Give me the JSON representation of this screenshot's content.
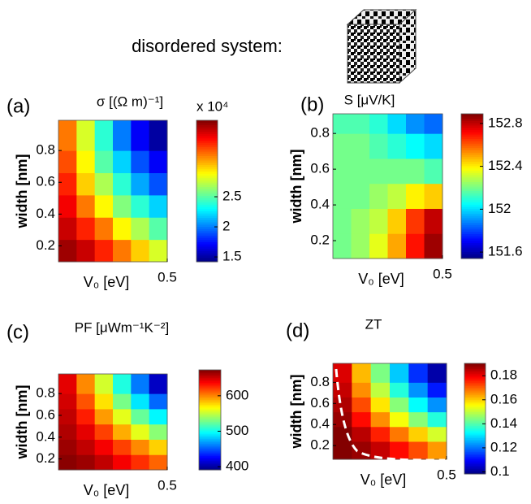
{
  "header": {
    "text": "disordered system:"
  },
  "chart_data": [
    {
      "type": "heatmap",
      "panel_label": "(a)",
      "title": "σ [(Ω m)⁻¹]",
      "xlabel": "V₀ [eV]",
      "ylabel": "width [nm]",
      "colormap": "jet",
      "colorbar_label": "x 10⁴",
      "x": [
        0.0875,
        0.1625,
        0.2375,
        0.3125,
        0.3875,
        0.4625
      ],
      "y": [
        0.17,
        0.31,
        0.45,
        0.59,
        0.73,
        0.87
      ],
      "z": [
        [
          3.7,
          3.6,
          3.4,
          3.2,
          3.0,
          2.8
        ],
        [
          3.6,
          3.4,
          3.2,
          2.9,
          2.7,
          2.5
        ],
        [
          3.5,
          3.2,
          2.9,
          2.6,
          2.4,
          2.2
        ],
        [
          3.4,
          3.0,
          2.7,
          2.4,
          2.1,
          1.9
        ],
        [
          3.3,
          2.9,
          2.5,
          2.2,
          1.9,
          1.7
        ],
        [
          3.2,
          2.8,
          2.4,
          2.0,
          1.7,
          1.5
        ]
      ],
      "xlim": [
        0.05,
        0.5
      ],
      "xticks": [
        0.5
      ],
      "ylim": [
        0.1,
        0.99
      ],
      "yticks": [
        0.2,
        0.4,
        0.6,
        0.8
      ],
      "clim": [
        1.42,
        3.77
      ],
      "cticks": [
        1.5,
        2,
        2.5
      ]
    },
    {
      "type": "heatmap",
      "panel_label": "(b)",
      "title": "S [μV/K]",
      "xlabel": "V₀ [eV]",
      "ylabel": "width [nm]",
      "colormap": "jet",
      "x": [
        0.0875,
        0.1625,
        0.2375,
        0.3125,
        0.3875,
        0.4625
      ],
      "y": [
        0.17,
        0.31,
        0.45,
        0.59,
        0.73,
        0.87
      ],
      "z": [
        [
          152.2,
          152.25,
          152.35,
          152.5,
          152.7,
          152.85
        ],
        [
          152.2,
          152.25,
          152.3,
          152.45,
          152.65,
          152.8
        ],
        [
          152.2,
          152.2,
          152.25,
          152.3,
          152.4,
          152.45
        ],
        [
          152.2,
          152.2,
          152.2,
          152.2,
          152.2,
          152.15
        ],
        [
          152.2,
          152.2,
          152.15,
          152.1,
          152.05,
          152.0
        ],
        [
          152.15,
          152.15,
          152.1,
          152.0,
          151.9,
          151.85
        ]
      ],
      "xlim": [
        0.05,
        0.5
      ],
      "xticks": [
        0.5
      ],
      "ylim": [
        0.1,
        0.91
      ],
      "yticks": [
        0.2,
        0.4,
        0.6,
        0.8
      ],
      "clim": [
        151.54,
        152.89
      ],
      "cticks": [
        151.6,
        152,
        152.4,
        152.8
      ]
    },
    {
      "type": "heatmap",
      "panel_label": "(c)",
      "title": "PF [μWm⁻¹K⁻²]",
      "xlabel": "V₀ [eV]",
      "ylabel": "width [nm]",
      "colormap": "jet",
      "x": [
        0.0875,
        0.1625,
        0.2375,
        0.3125,
        0.3875,
        0.4625
      ],
      "y": [
        0.17,
        0.31,
        0.45,
        0.59,
        0.73,
        0.87
      ],
      "z": [
        [
          670,
          665,
          655,
          640,
          625,
          610
        ],
        [
          665,
          655,
          640,
          620,
          600,
          580
        ],
        [
          660,
          645,
          620,
          590,
          560,
          535
        ],
        [
          655,
          630,
          595,
          560,
          525,
          495
        ],
        [
          650,
          615,
          575,
          530,
          490,
          455
        ],
        [
          645,
          600,
          555,
          505,
          460,
          410
        ]
      ],
      "xlim": [
        0.05,
        0.5
      ],
      "xticks": [
        0.5
      ],
      "ylim": [
        0.1,
        0.98
      ],
      "yticks": [
        0.2,
        0.4,
        0.6,
        0.8
      ],
      "clim": [
        391,
        673
      ],
      "cticks": [
        400,
        500,
        600
      ]
    },
    {
      "type": "heatmap",
      "panel_label": "(d)",
      "title": "ZT",
      "xlabel": "V₀ [eV]",
      "ylabel": "width [nm]",
      "colormap": "jet",
      "x": [
        0.0875,
        0.1625,
        0.2375,
        0.3125,
        0.3875,
        0.4625
      ],
      "y": [
        0.17,
        0.31,
        0.45,
        0.59,
        0.73,
        0.87
      ],
      "z": [
        [
          0.19,
          0.188,
          0.184,
          0.178,
          0.172,
          0.165
        ],
        [
          0.19,
          0.185,
          0.176,
          0.168,
          0.16,
          0.152
        ],
        [
          0.188,
          0.178,
          0.166,
          0.155,
          0.145,
          0.136
        ],
        [
          0.186,
          0.172,
          0.158,
          0.145,
          0.133,
          0.123
        ],
        [
          0.184,
          0.166,
          0.15,
          0.136,
          0.123,
          0.112
        ],
        [
          0.182,
          0.162,
          0.144,
          0.128,
          0.114,
          0.102
        ]
      ],
      "xlim": [
        0.05,
        0.5
      ],
      "xticks": [
        0.5
      ],
      "ylim": [
        0.07,
        0.98
      ],
      "yticks": [
        0.2,
        0.4,
        0.6,
        0.8
      ],
      "clim": [
        0.0983,
        0.1903
      ],
      "cticks": [
        0.1,
        0.12,
        0.14,
        0.16,
        0.18
      ]
    }
  ]
}
